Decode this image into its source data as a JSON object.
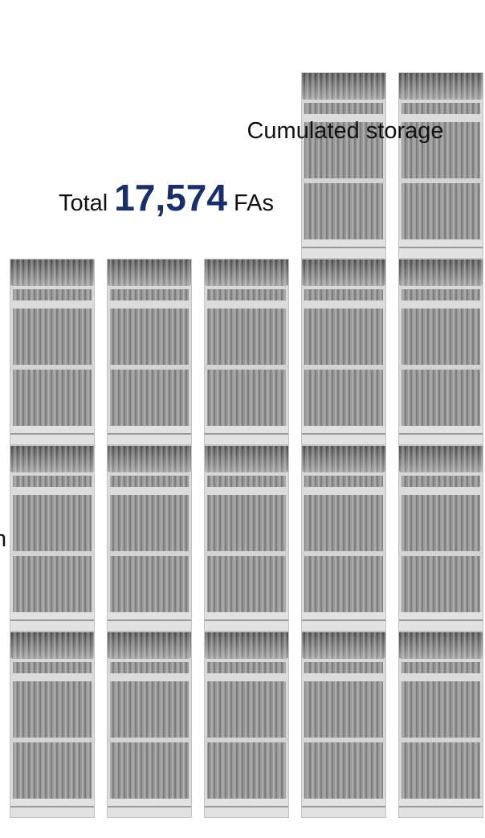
{
  "title": "Cumulated storage",
  "total": {
    "prefix": "Total",
    "value": "17,574",
    "unit": "FAs"
  },
  "side_label": "n"
}
